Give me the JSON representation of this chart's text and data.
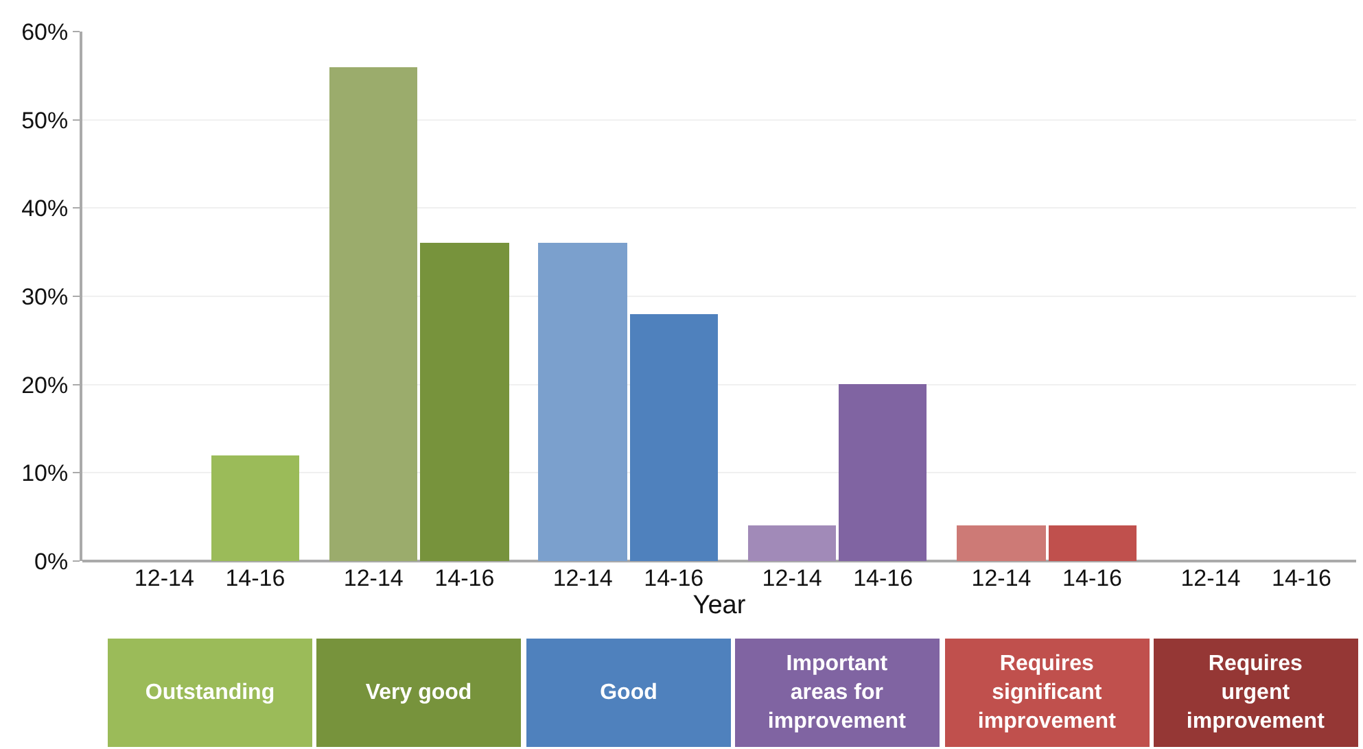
{
  "chart_data": {
    "type": "bar",
    "xlabel": "Year",
    "categories": [
      "12-14",
      "14-16",
      "12-14",
      "14-16",
      "12-14",
      "14-16",
      "12-14",
      "14-16",
      "12-14",
      "14-16",
      "12-14",
      "14-16"
    ],
    "values": [
      0,
      12,
      56,
      36,
      36,
      28,
      4,
      20,
      4,
      4,
      0,
      0
    ],
    "colors": [
      "#9bbb59",
      "#9bbb59",
      "#9bac6c",
      "#77933c",
      "#7ba0cd",
      "#4f81bd",
      "#a18ab8",
      "#8064a2",
      "#cd7a76",
      "#c0504d",
      "#b05a58",
      "#953735"
    ],
    "ylim": [
      0,
      60
    ],
    "yticks": [
      {
        "value": 0,
        "label": "0%"
      },
      {
        "value": 10,
        "label": "10%"
      },
      {
        "value": 20,
        "label": "20%"
      },
      {
        "value": 30,
        "label": "30%"
      },
      {
        "value": 40,
        "label": "40%"
      },
      {
        "value": 50,
        "label": "50%"
      },
      {
        "value": 60,
        "label": "60%"
      }
    ],
    "grid": "y",
    "annotations": [
      "Outstanding",
      "Very good",
      "Good",
      "Important areas for improvement",
      "Requires significant improvement",
      "Requires urgent improvement"
    ]
  }
}
